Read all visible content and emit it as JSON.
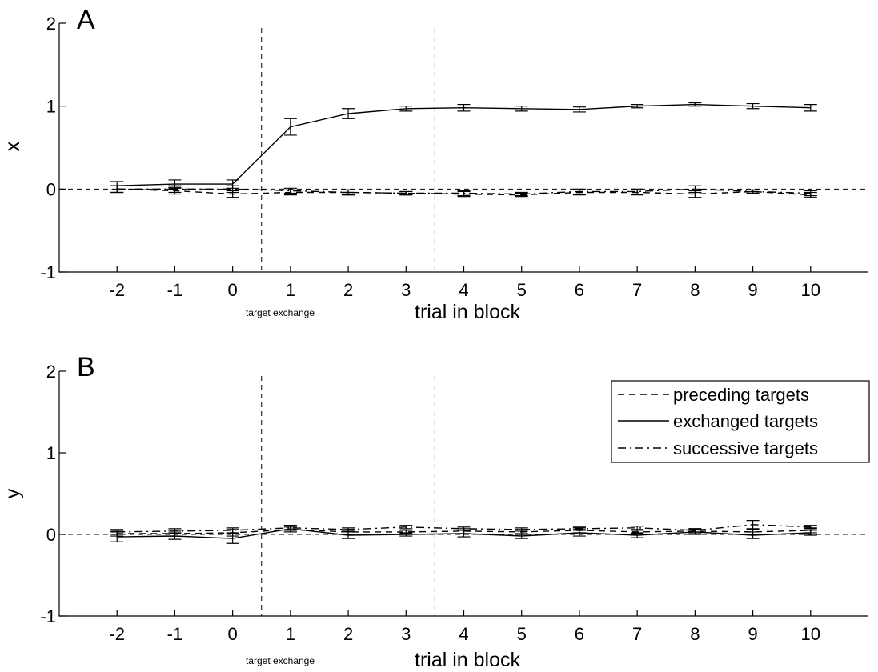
{
  "chart_data": [
    {
      "type": "line",
      "panel_label": "A",
      "xlabel": "trial in block",
      "ylabel": "x",
      "annotation": "target exchange",
      "x": [
        -2,
        -1,
        0,
        1,
        2,
        3,
        4,
        5,
        6,
        7,
        8,
        9,
        10
      ],
      "xlim": [
        -3,
        11
      ],
      "ylim": [
        -1,
        2
      ],
      "xticks": [
        -2,
        -1,
        0,
        1,
        2,
        3,
        4,
        5,
        6,
        7,
        8,
        9,
        10
      ],
      "yticks": [
        -1,
        0,
        1,
        2
      ],
      "reference_h": [
        0
      ],
      "reference_v": [
        0.5,
        3.5
      ],
      "legend": false,
      "series": [
        {
          "key": "preceding",
          "style": "dashed",
          "values": [
            0.0,
            -0.02,
            -0.06,
            -0.04,
            -0.04,
            -0.05,
            -0.06,
            -0.07,
            -0.04,
            -0.04,
            -0.06,
            -0.03,
            -0.07
          ],
          "errors": [
            0.04,
            0.04,
            0.04,
            0.03,
            0.03,
            0.02,
            0.03,
            0.02,
            0.03,
            0.03,
            0.04,
            0.02,
            0.03
          ]
        },
        {
          "key": "exchanged",
          "style": "solid",
          "values": [
            0.04,
            0.06,
            0.06,
            0.75,
            0.91,
            0.97,
            0.98,
            0.97,
            0.96,
            1.0,
            1.02,
            1.0,
            0.98
          ],
          "errors": [
            0.05,
            0.05,
            0.05,
            0.1,
            0.06,
            0.03,
            0.04,
            0.03,
            0.03,
            0.02,
            0.02,
            0.03,
            0.04
          ]
        },
        {
          "key": "successive",
          "style": "dashdot",
          "values": [
            0.0,
            0.0,
            0.0,
            -0.02,
            -0.04,
            -0.05,
            -0.05,
            -0.06,
            -0.03,
            -0.03,
            0.0,
            -0.03,
            -0.05
          ],
          "errors": [
            0.04,
            0.04,
            0.04,
            0.03,
            0.03,
            0.02,
            0.03,
            0.02,
            0.03,
            0.03,
            0.04,
            0.02,
            0.03
          ]
        }
      ]
    },
    {
      "type": "line",
      "panel_label": "B",
      "xlabel": "trial in block",
      "ylabel": "y",
      "annotation": "target exchange",
      "x": [
        -2,
        -1,
        0,
        1,
        2,
        3,
        4,
        5,
        6,
        7,
        8,
        9,
        10
      ],
      "xlim": [
        -3,
        11
      ],
      "ylim": [
        -1,
        2
      ],
      "xticks": [
        -2,
        -1,
        0,
        1,
        2,
        3,
        4,
        5,
        6,
        7,
        8,
        9,
        10
      ],
      "yticks": [
        -1,
        0,
        1,
        2
      ],
      "reference_h": [
        0
      ],
      "reference_v": [
        0.5,
        3.5
      ],
      "legend": true,
      "legend_position": "top-right",
      "series": [
        {
          "key": "preceding",
          "name": "preceding targets",
          "style": "dashed",
          "values": [
            0.01,
            0.01,
            0.02,
            0.06,
            0.03,
            0.03,
            0.04,
            0.03,
            0.05,
            0.03,
            0.04,
            0.03,
            0.05
          ],
          "errors": [
            0.03,
            0.03,
            0.04,
            0.03,
            0.03,
            0.02,
            0.03,
            0.03,
            0.03,
            0.02,
            0.03,
            0.03,
            0.03
          ]
        },
        {
          "key": "exchanged",
          "name": "exchanged targets",
          "style": "solid",
          "values": [
            -0.03,
            -0.02,
            -0.05,
            0.07,
            -0.01,
            0.0,
            0.01,
            -0.02,
            0.02,
            -0.01,
            0.03,
            -0.01,
            0.02
          ],
          "errors": [
            0.06,
            0.04,
            0.06,
            0.04,
            0.04,
            0.02,
            0.04,
            0.03,
            0.04,
            0.03,
            0.03,
            0.04,
            0.03
          ]
        },
        {
          "key": "successive",
          "name": "successive targets",
          "style": "dashdot",
          "values": [
            0.03,
            0.04,
            0.05,
            0.08,
            0.06,
            0.09,
            0.07,
            0.06,
            0.07,
            0.08,
            0.05,
            0.12,
            0.09
          ],
          "errors": [
            0.03,
            0.03,
            0.03,
            0.03,
            0.02,
            0.02,
            0.02,
            0.02,
            0.02,
            0.02,
            0.02,
            0.05,
            0.02
          ]
        }
      ]
    }
  ]
}
